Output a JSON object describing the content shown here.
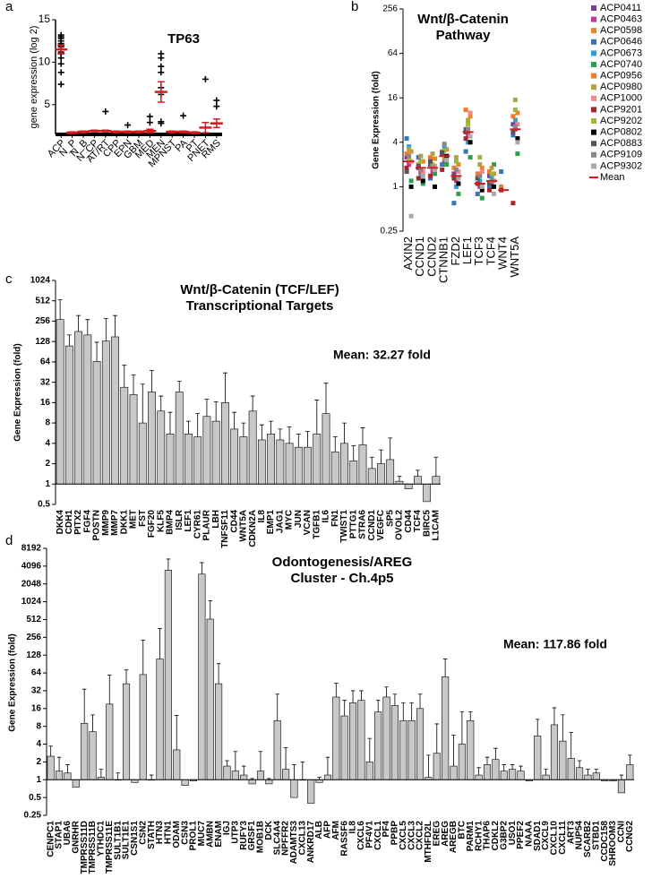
{
  "chart_data": [
    {
      "type": "dot",
      "panel_label": "a",
      "title": [
        "TP63"
      ],
      "y_label": "gene expression (log 2)",
      "categories": [
        "ACP",
        "N_P",
        "N_B",
        "N_CP",
        "AT/RT",
        "CPP",
        "EPN",
        "GBM",
        "MED",
        "MEN",
        "MPNST",
        "PA",
        "PT",
        "PNET",
        "RMS"
      ],
      "values": [
        11.5,
        1.7,
        1.8,
        1.9,
        1.9,
        1.8,
        1.8,
        1.8,
        1.9,
        6.5,
        1.8,
        1.8,
        1.7,
        2.3,
        2.8
      ],
      "errors": [
        0.5,
        0.1,
        0.1,
        0.1,
        0.1,
        0.1,
        0.1,
        0.1,
        0.2,
        1.2,
        0.1,
        0.1,
        0.1,
        0.6,
        0.5
      ],
      "points": [
        [
          13.2,
          13,
          12.8,
          12.5,
          12.2,
          12,
          11.8,
          11.5,
          11.2,
          11,
          10.5,
          9.8,
          8.8,
          7.4
        ],
        [],
        [],
        [],
        [
          4.2
        ],
        [],
        [
          2.6
        ],
        [],
        [
          3.6,
          2.9
        ],
        [
          11,
          10.5,
          9.5,
          8.8,
          7,
          6.2,
          3,
          2.8
        ],
        [],
        [
          3.7
        ],
        [],
        [
          8
        ],
        [
          5.5,
          4.8
        ]
      ],
      "color": "#000000",
      "mean_color": "#d7191c",
      "ylim": [
        1.5,
        15
      ],
      "yticks": [
        5,
        10,
        15
      ]
    },
    {
      "type": "strip",
      "panel_label": "b",
      "title": [
        "Wnt/β-Catenin",
        "Pathway"
      ],
      "y_label": "Gene Expression (fold)",
      "categories": [
        "AXIN2",
        "CCND1",
        "CCND2",
        "CTNNB1",
        "FZD2",
        "LEF1",
        "TCF3",
        "TCF4",
        "WNT4",
        "WNT5A"
      ],
      "series": [
        {
          "name": "ACP0411",
          "color": "#7b3f98",
          "values": [
            2.5,
            1.8,
            2.0,
            2.8,
            1.5,
            6,
            1.3,
            1.4,
            null,
            7
          ]
        },
        {
          "name": "ACP0463",
          "color": "#c0399b",
          "values": [
            2.0,
            1.5,
            1.6,
            2.2,
            1.2,
            5,
            1.0,
            1.1,
            null,
            6
          ]
        },
        {
          "name": "ACP0598",
          "color": "#e8862a",
          "values": [
            3.0,
            2.2,
            2.4,
            3.2,
            2.0,
            9,
            1.8,
            1.5,
            null,
            10
          ]
        },
        {
          "name": "ACP0646",
          "color": "#3a73b8",
          "values": [
            4.5,
            2.5,
            1.3,
            2.0,
            0.6,
            3,
            0.8,
            1.0,
            1.6,
            5
          ]
        },
        {
          "name": "ACP0673",
          "color": "#2e9fd8",
          "values": [
            3.5,
            1.4,
            1.8,
            3.5,
            1.0,
            4,
            1.2,
            1.3,
            null,
            8
          ]
        },
        {
          "name": "ACP0740",
          "color": "#2ea04a",
          "values": [
            1.2,
            1.1,
            1.5,
            2.0,
            0.8,
            2.5,
            0.7,
            2.0,
            null,
            2.8
          ]
        },
        {
          "name": "ACP0956",
          "color": "#f07a2e",
          "values": [
            2.8,
            2.0,
            2.5,
            3.0,
            1.8,
            11,
            1.5,
            1.6,
            1.0,
            9
          ]
        },
        {
          "name": "ACP0980",
          "color": "#b5a04a",
          "values": [
            3.2,
            2.6,
            2.8,
            2.4,
            2.5,
            8,
            2.0,
            1.8,
            null,
            15
          ]
        },
        {
          "name": "ACP1000",
          "color": "#f08a8a",
          "values": [
            2.2,
            1.6,
            1.9,
            2.6,
            1.6,
            10,
            1.6,
            1.2,
            null,
            7
          ]
        },
        {
          "name": "ACP9201",
          "color": "#a5282e",
          "values": [
            1.8,
            1.3,
            1.4,
            1.7,
            1.3,
            4.5,
            1.1,
            0.9,
            0.9,
            0.6
          ]
        },
        {
          "name": "ACP9202",
          "color": "#9ab83a",
          "values": [
            2.4,
            2.2,
            2.0,
            3.1,
            2.2,
            7,
            2.5,
            1.5,
            null,
            11
          ]
        },
        {
          "name": "ACP0802",
          "color": "#000000",
          "values": [
            1.0,
            1.2,
            1.0,
            2.6,
            1.1,
            4,
            0.9,
            1.0,
            null,
            4.5
          ]
        },
        {
          "name": "ACP0883",
          "color": "#555555",
          "values": [
            1.6,
            1.9,
            2.2,
            2.9,
            1.4,
            5.5,
            1.3,
            1.1,
            null,
            5.5
          ]
        },
        {
          "name": "ACP9109",
          "color": "#888888",
          "values": [
            2.6,
            1.7,
            1.8,
            3.8,
            1.7,
            6,
            1.4,
            1.2,
            null,
            6.5
          ]
        },
        {
          "name": "ACP9302",
          "color": "#aaaaaa",
          "values": [
            0.4,
            1.4,
            1.7,
            2.3,
            1.3,
            4.8,
            1.0,
            0.8,
            null,
            4
          ]
        }
      ],
      "mean_label": "Mean",
      "mean_color": "#d7191c",
      "means": [
        2.2,
        1.8,
        1.8,
        2.6,
        1.4,
        5.5,
        1.1,
        1.2,
        0.9,
        6
      ],
      "log_base": 2,
      "ylim": [
        0.25,
        256
      ],
      "yticks": [
        0.25,
        1,
        4,
        16,
        64,
        256
      ]
    },
    {
      "type": "bar",
      "panel_label": "c",
      "title": [
        "Wnt/β-Catenin (TCF/LEF)",
        "Transcriptional Targets"
      ],
      "y_label": "Gene Expression (fold)",
      "annotation": "Mean: 32.27 fold",
      "categories": [
        "DKK4",
        "CDH1",
        "PITX2",
        "FGF4",
        "POSTN",
        "MMP9",
        "MMP7",
        "DKK1",
        "MET",
        "FST",
        "FGF20",
        "KLF5",
        "BMP4",
        "ISLR",
        "LEF1",
        "CYR61",
        "PLAUR",
        "LBH",
        "TNFSF11",
        "CD44",
        "WNT5A",
        "CDKN2A",
        "IL8",
        "EMP1",
        "JAG1",
        "MYC",
        "JUN",
        "VCAN",
        "TGFB1",
        "IL6",
        "FN1",
        "TWIST1",
        "PTTG1",
        "STRA6",
        "CCND1",
        "VEGFC",
        "SP5",
        "OVOL2",
        "CD44",
        "TCF4",
        "BIRC5",
        "L1CAM"
      ],
      "values": [
        270,
        110,
        180,
        160,
        65,
        130,
        150,
        27,
        21,
        8,
        23,
        12,
        5.5,
        23,
        5.5,
        5,
        10,
        8.5,
        16,
        6.5,
        5,
        12,
        4.5,
        5.5,
        4.5,
        4,
        3.5,
        3.5,
        5.5,
        11,
        3,
        4,
        2.2,
        3.8,
        1.7,
        2,
        2.3,
        1.1,
        0.85,
        1.3,
        0.55,
        1.3
      ],
      "errors": [
        260,
        50,
        130,
        110,
        60,
        150,
        160,
        30,
        20,
        22,
        25,
        8,
        6,
        10,
        3,
        6,
        8,
        8,
        28,
        5,
        3,
        8,
        3,
        3,
        2,
        3,
        2,
        2.5,
        12,
        20,
        2,
        4,
        1.5,
        3,
        0.8,
        1.2,
        2.5,
        0.2,
        0.15,
        0.3,
        0,
        1.2
      ],
      "color": "#c8c8c8",
      "log_base": 2,
      "ylim": [
        0.5,
        1024
      ],
      "yticks": [
        0.5,
        1,
        2,
        4,
        8,
        16,
        32,
        64,
        128,
        256,
        512,
        1024
      ]
    },
    {
      "type": "bar",
      "panel_label": "d",
      "title": [
        "Odontogenesis/AREG",
        "Cluster - Ch.4p5"
      ],
      "y_label": "Gene Expression (fold)",
      "annotation": "Mean: 117.86 fold",
      "categories": [
        "CENPC1",
        "STAP1",
        "UBA6",
        "GNRHR",
        "TMPRSS11D",
        "TMPRSS11B",
        "YTHDC1",
        "TMPRSS11E",
        "SULT1B1",
        "SULT1E1",
        "CSN1S1",
        "CSN2",
        "STATH",
        "HTN3",
        "HTN1",
        "ODAM",
        "CSN3",
        "PROL1",
        "MUC7",
        "AMBN",
        "ENAM",
        "IGJ",
        "UTP3",
        "RUFY3",
        "GRSF1",
        "MOB1B",
        "DCK",
        "SLC4A4",
        "NPFFR2",
        "ADAMTS3",
        "CXCL13",
        "ANKRD17",
        "ALB",
        "AFP",
        "AFM",
        "RASSF6",
        "IL8",
        "CXCL6",
        "PF4V1",
        "CXCL1",
        "PF4",
        "PPBP",
        "CXCL5",
        "CXCL3",
        "CXCL2",
        "MTHFD2L",
        "EREG",
        "AREG",
        "AREGB",
        "BTC",
        "PARM1",
        "RCHY1",
        "THAP6",
        "CDKL2",
        "G3BP2",
        "USO1",
        "PPEF2",
        "NAAA",
        "SDAD1",
        "CXCL9",
        "CXCL10",
        "CXCL11",
        "ART3",
        "NUP54",
        "SCARB2",
        "STBD1",
        "CCDC158",
        "SHROOM3",
        "CCNI",
        "CCNG2"
      ],
      "values": [
        2.5,
        1.4,
        1.3,
        0.75,
        9,
        6.5,
        1.1,
        19,
        1,
        42,
        0.9,
        60,
        1,
        110,
        3500,
        3.2,
        0.8,
        0.95,
        3000,
        520,
        42,
        1.7,
        1.4,
        1.2,
        0.85,
        1.4,
        0.85,
        10,
        1.5,
        0.5,
        1,
        0.4,
        0.9,
        1.2,
        25,
        12,
        20,
        22,
        2,
        14,
        25,
        18,
        10,
        10,
        16,
        1.1,
        2.8,
        55,
        1.7,
        4,
        10,
        1.2,
        1.8,
        2.2,
        1.4,
        1.5,
        1.4,
        0.95,
        5.5,
        1.2,
        8.5,
        4.5,
        2.3,
        1.6,
        1.2,
        1.3,
        0.95,
        0.95,
        0.6,
        1.8
      ],
      "errors": [
        1.2,
        1,
        0.5,
        0.05,
        25,
        6,
        0.4,
        40,
        0.3,
        30,
        0.1,
        170,
        0.2,
        250,
        1900,
        9,
        0.05,
        0.05,
        1700,
        550,
        50,
        0.4,
        1.6,
        0.5,
        0.2,
        1.6,
        0.2,
        18,
        2,
        1.3,
        1,
        0.4,
        0.2,
        1.2,
        18,
        10,
        12,
        10,
        3,
        8,
        12,
        10,
        10,
        10,
        12,
        1.5,
        6,
        55,
        4,
        10,
        4,
        0.4,
        0.6,
        1.2,
        0.4,
        0.3,
        0.3,
        0.05,
        5,
        0.3,
        8,
        8,
        4,
        0.5,
        0.3,
        0.2,
        0.05,
        0.05,
        0.6,
        0.8
      ],
      "color": "#c8c8c8",
      "log_base": 2,
      "ylim": [
        0.25,
        8192
      ],
      "yticks": [
        0.25,
        0.5,
        1,
        2,
        4,
        8,
        16,
        32,
        64,
        128,
        256,
        512,
        1024,
        2048,
        4096,
        8192
      ]
    }
  ]
}
